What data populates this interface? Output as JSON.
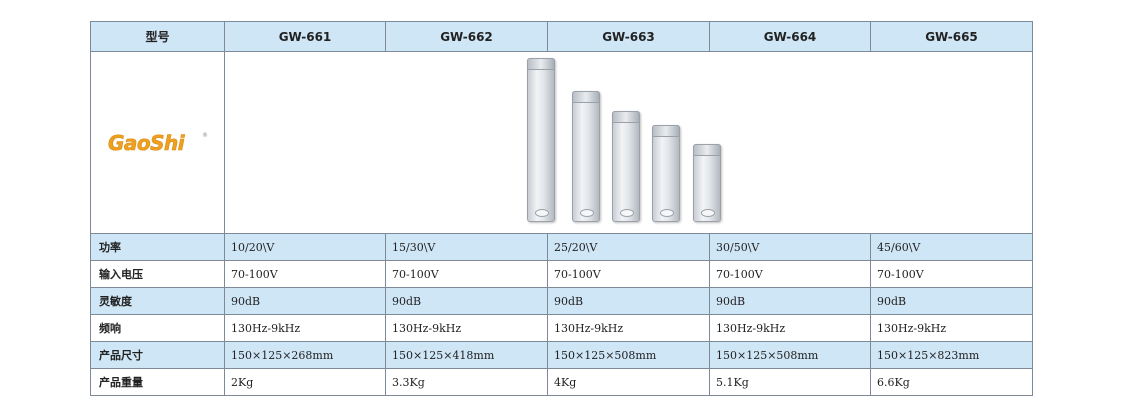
{
  "header": {
    "label": "型号",
    "models": [
      "GW-661",
      "GW-662",
      "GW-663",
      "GW-664",
      "GW-665"
    ]
  },
  "logo": {
    "gao": "GaoShi",
    "registered": "®"
  },
  "rows": [
    {
      "label": "功率",
      "values": [
        "10/20\\V",
        "15/30\\V",
        "25/20\\V",
        "30/50\\V",
        "45/60\\V"
      ]
    },
    {
      "label": "输入电压",
      "values": [
        "70-100V",
        "70-100V",
        "70-100V",
        "70-100V",
        "70-100V"
      ]
    },
    {
      "label": "灵敏度",
      "values": [
        "90dB",
        "90dB",
        "90dB",
        "90dB",
        "90dB"
      ]
    },
    {
      "label": "频响",
      "values": [
        "130Hz-9kHz",
        "130Hz-9kHz",
        "130Hz-9kHz",
        "130Hz-9kHz",
        "130Hz-9kHz"
      ]
    },
    {
      "label": "产品尺寸",
      "values": [
        "150×125×268mm",
        "150×125×418mm",
        "150×125×508mm",
        "150×125×508mm",
        "150×125×823mm"
      ]
    },
    {
      "label": "产品重量",
      "values": [
        "2Kg",
        "3.3Kg",
        "4Kg",
        "5.1Kg",
        "6.6Kg"
      ]
    }
  ],
  "colors": {
    "header_bg": "#cfe6f6",
    "border": "#7f8a99",
    "logo_orange": "#f0a020"
  }
}
